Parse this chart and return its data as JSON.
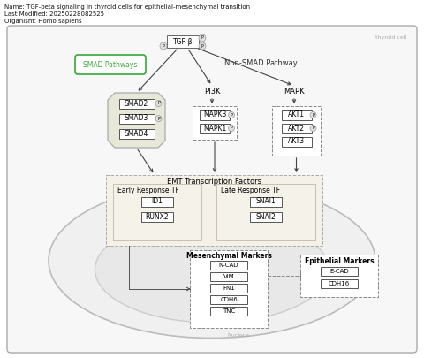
{
  "title_line1": "Name: TGF-beta signaling in thyroid cells for epithelial-mesenchymal transition",
  "title_line2": "Last Modified: 20250228082525",
  "title_line3": "Organism: Homo sapiens",
  "bg_color": "#ffffff",
  "tgfb_label": "TGF-β",
  "pi3k_label": "PI3K",
  "mapk_label": "MAPK",
  "smad_pathway_label": "SMAD Pathways",
  "nonsmad_label": "Non-SMAD Pathway",
  "smad_nodes": [
    "SMAD2",
    "SMAD3",
    "SMAD4"
  ],
  "mapk3_nodes": [
    "MAPK3",
    "MAPK1"
  ],
  "akt_nodes": [
    "AKT1",
    "AKT2",
    "AKT3"
  ],
  "emt_label": "EMT Transcription Factors",
  "early_label": "Early Response TF",
  "early_nodes": [
    "ID1",
    "RUNX2"
  ],
  "late_label": "Late Response TF",
  "late_nodes": [
    "SNAI1",
    "SNAI2"
  ],
  "mesen_label": "Mesenchymal Markers",
  "mesen_nodes": [
    "N-CAD",
    "VIM",
    "FN1",
    "CDH6",
    "TNC"
  ],
  "epi_label": "Epithelial Markers",
  "epi_nodes": [
    "E-CAD",
    "CDH16"
  ],
  "nucleus_label": "Nucleus",
  "thyroid_label": "thyroid cell",
  "smad_box_fill": "#e8e8d8",
  "smad_box_border": "#aaaaaa",
  "emt_box_fill": "#f5f0e8",
  "p_circle_fill": "#e0e0e0",
  "smad_green": "#33aa33",
  "arrow_color": "#444444",
  "node_fill": "#ffffff",
  "node_border": "#555555",
  "dashed_border": "#888888",
  "outer_fill": "#f7f7f7",
  "outer_border": "#aaaaaa",
  "cell_fill": "#f0f0f0",
  "cell_border": "#bbbbbb",
  "nucleus_fill": "#e8e8e8",
  "nucleus_border": "#cccccc"
}
